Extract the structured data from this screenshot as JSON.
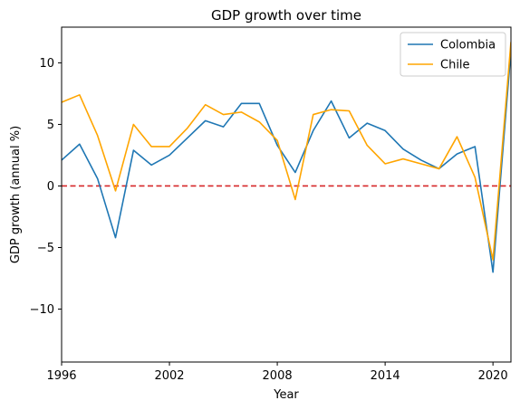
{
  "chart_data": {
    "type": "line",
    "title": "GDP  growth over time",
    "xlabel": "Year",
    "ylabel": "GDP growth (annual %)",
    "xlim": [
      1996,
      2021
    ],
    "ylim": [
      -14.3,
      12.9
    ],
    "x_ticks": [
      1996,
      2002,
      2008,
      2014,
      2020
    ],
    "y_ticks": [
      -10,
      -5,
      0,
      5,
      10
    ],
    "y_tick_labels": [
      "−10",
      "−5",
      "0",
      "5",
      "10"
    ],
    "grid": false,
    "legend_position": "top-right",
    "reference_line": {
      "y": 0,
      "color": "#d62728",
      "style": "dashed"
    },
    "x": [
      1996,
      1997,
      1998,
      1999,
      2000,
      2001,
      2002,
      2003,
      2004,
      2005,
      2006,
      2007,
      2008,
      2009,
      2010,
      2011,
      2012,
      2013,
      2014,
      2015,
      2016,
      2017,
      2018,
      2019,
      2020,
      2021
    ],
    "series": [
      {
        "name": "Colombia",
        "color": "#1f77b4",
        "values": [
          2.1,
          3.4,
          0.6,
          -4.2,
          2.9,
          1.7,
          2.5,
          3.9,
          5.3,
          4.8,
          6.7,
          6.7,
          3.3,
          1.1,
          4.5,
          6.9,
          3.9,
          5.1,
          4.5,
          3.0,
          2.1,
          1.4,
          2.6,
          3.2,
          -7.0,
          11.0
        ]
      },
      {
        "name": "Chile",
        "color": "#ffa500",
        "values": [
          6.8,
          7.4,
          4.1,
          -0.4,
          5.0,
          3.2,
          3.2,
          4.7,
          6.6,
          5.8,
          6.0,
          5.2,
          3.7,
          -1.1,
          5.8,
          6.2,
          6.1,
          3.3,
          1.8,
          2.2,
          1.8,
          1.4,
          4.0,
          0.7,
          -6.0,
          11.7
        ]
      }
    ]
  }
}
